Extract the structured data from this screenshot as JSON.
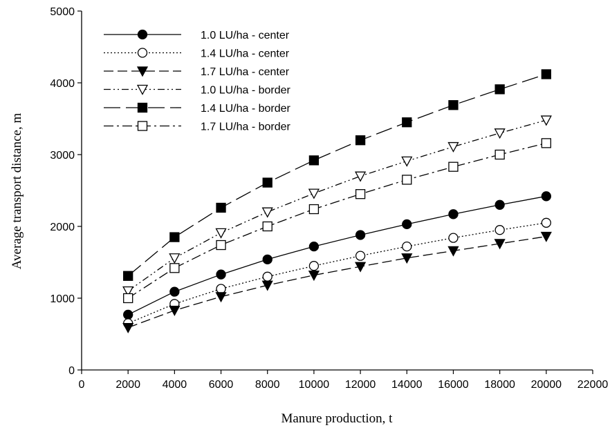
{
  "chart_data": {
    "type": "line",
    "title": "",
    "xlabel": "Manure production, t",
    "ylabel": "Average transport distance, m",
    "xlim": [
      0,
      22000
    ],
    "ylim": [
      0,
      5000
    ],
    "x_ticks": [
      "0",
      "2000",
      "4000",
      "6000",
      "8000",
      "10000",
      "12000",
      "14000",
      "16000",
      "18000",
      "20000",
      "22000"
    ],
    "y_ticks": [
      "0",
      "1000",
      "2000",
      "3000",
      "4000",
      "5000"
    ],
    "grid": false,
    "legend_position": "top-left",
    "x": [
      2000,
      4000,
      6000,
      8000,
      10000,
      12000,
      14000,
      16000,
      18000,
      20000
    ],
    "series": [
      {
        "name": "1.0 LU/ha - center",
        "line_style": "solid",
        "marker": "filled-circle",
        "values": [
          770,
          1090,
          1330,
          1540,
          1720,
          1880,
          2030,
          2170,
          2300,
          2420
        ]
      },
      {
        "name": "1.4 LU/ha - center",
        "line_style": "dotted",
        "marker": "open-circle",
        "values": [
          650,
          920,
          1130,
          1300,
          1450,
          1590,
          1720,
          1840,
          1950,
          2050
        ]
      },
      {
        "name": "1.7 LU/ha - center",
        "line_style": "dashed",
        "marker": "filled-triangle-down",
        "values": [
          590,
          830,
          1020,
          1180,
          1320,
          1440,
          1560,
          1660,
          1760,
          1860
        ]
      },
      {
        "name": "1.0 LU/ha - border",
        "line_style": "dash-dot-dot",
        "marker": "open-triangle-down",
        "values": [
          1100,
          1560,
          1910,
          2200,
          2460,
          2700,
          2910,
          3110,
          3300,
          3480
        ]
      },
      {
        "name": "1.4 LU/ha - border",
        "line_style": "long-dash",
        "marker": "filled-square",
        "values": [
          1310,
          1850,
          2260,
          2610,
          2920,
          3200,
          3450,
          3690,
          3910,
          4120
        ]
      },
      {
        "name": "1.7 LU/ha - border",
        "line_style": "dash-dot",
        "marker": "open-square",
        "values": [
          1000,
          1420,
          1740,
          2000,
          2240,
          2450,
          2650,
          2830,
          3000,
          3160
        ]
      }
    ]
  }
}
